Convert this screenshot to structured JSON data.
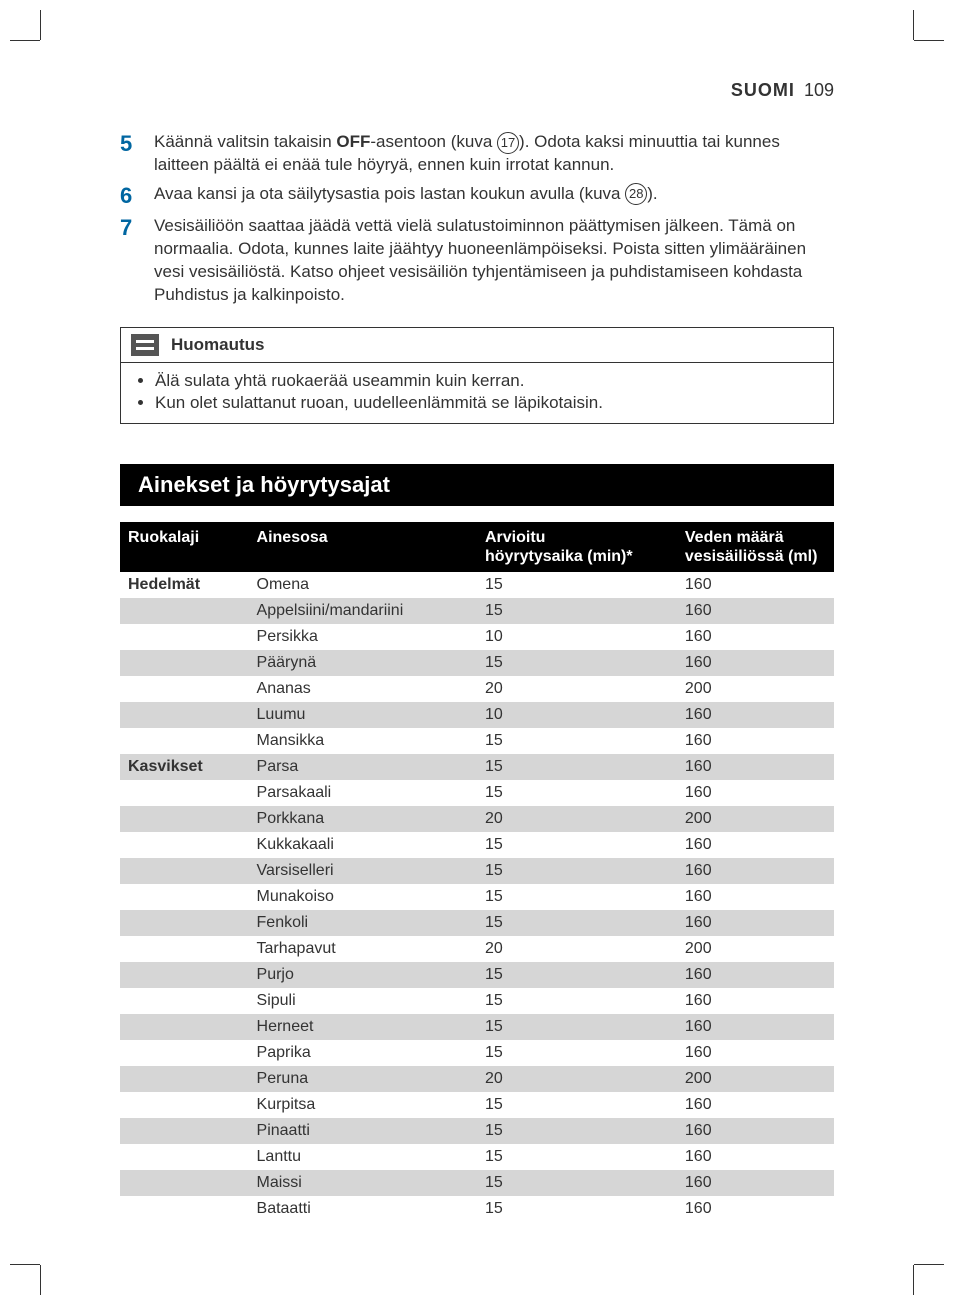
{
  "header": {
    "language": "SUOMI",
    "page_number": "109"
  },
  "steps": [
    {
      "num": "5",
      "text_parts": [
        "Käännä valitsin takaisin ",
        {
          "bold": "OFF"
        },
        "-asentoon (kuva ",
        {
          "fig": "17"
        },
        "). Odota kaksi minuuttia tai kunnes laitteen päältä ei enää tule höyryä, ennen kuin irrotat kannun."
      ]
    },
    {
      "num": "6",
      "text_parts": [
        "Avaa kansi ja ota säilytysastia pois lastan koukun avulla (kuva ",
        {
          "fig": "28"
        },
        ")."
      ]
    },
    {
      "num": "7",
      "text_parts": [
        "Vesisäiliöön saattaa jäädä vettä vielä sulatustoiminnon päättymisen jälkeen. Tämä on normaalia. Odota, kunnes laite jäähtyy huoneenlämpöiseksi. Poista sitten ylimääräinen vesi vesisäiliöstä. Katso ohjeet vesisäiliön tyhjentämiseen ja puhdistamiseen kohdasta Puhdistus ja kalkinpoisto."
      ]
    }
  ],
  "note": {
    "title": "Huomautus",
    "items": [
      "Älä sulata yhtä ruokaerää useammin kuin kerran.",
      "Kun olet sulattanut ruoan, uudelleenlämmitä se läpikotaisin."
    ]
  },
  "section_title": "Ainekset ja höyrytysajat",
  "table": {
    "columns": [
      "Ruokalaji",
      "Ainesosa",
      "Arvioitu höyrytysaika (min)*",
      "Veden määrä vesisäiliössä (ml)"
    ],
    "col_header_lines": {
      "col3": [
        "Arvioitu",
        "höyrytysaika (min)*"
      ],
      "col4": [
        "Veden määrä",
        "vesisäiliössä (ml)"
      ]
    },
    "rows": [
      {
        "category": "Hedelmät",
        "ingredient": "Omena",
        "time": "15",
        "water": "160",
        "shade": false
      },
      {
        "category": "",
        "ingredient": "Appelsiini/mandariini",
        "time": "15",
        "water": "160",
        "shade": true
      },
      {
        "category": "",
        "ingredient": "Persikka",
        "time": "10",
        "water": "160",
        "shade": false
      },
      {
        "category": "",
        "ingredient": "Päärynä",
        "time": "15",
        "water": "160",
        "shade": true
      },
      {
        "category": "",
        "ingredient": "Ananas",
        "time": "20",
        "water": "200",
        "shade": false
      },
      {
        "category": "",
        "ingredient": "Luumu",
        "time": "10",
        "water": "160",
        "shade": true
      },
      {
        "category": "",
        "ingredient": "Mansikka",
        "time": "15",
        "water": "160",
        "shade": false
      },
      {
        "category": "Kasvikset",
        "ingredient": "Parsa",
        "time": "15",
        "water": "160",
        "shade": true
      },
      {
        "category": "",
        "ingredient": "Parsakaali",
        "time": "15",
        "water": "160",
        "shade": false
      },
      {
        "category": "",
        "ingredient": "Porkkana",
        "time": "20",
        "water": "200",
        "shade": true
      },
      {
        "category": "",
        "ingredient": "Kukkakaali",
        "time": "15",
        "water": "160",
        "shade": false
      },
      {
        "category": "",
        "ingredient": "Varsiselleri",
        "time": "15",
        "water": "160",
        "shade": true
      },
      {
        "category": "",
        "ingredient": "Munakoiso",
        "time": "15",
        "water": "160",
        "shade": false
      },
      {
        "category": "",
        "ingredient": "Fenkoli",
        "time": "15",
        "water": "160",
        "shade": true
      },
      {
        "category": "",
        "ingredient": "Tarhapavut",
        "time": "20",
        "water": "200",
        "shade": false
      },
      {
        "category": "",
        "ingredient": "Purjo",
        "time": "15",
        "water": "160",
        "shade": true
      },
      {
        "category": "",
        "ingredient": "Sipuli",
        "time": "15",
        "water": "160",
        "shade": false
      },
      {
        "category": "",
        "ingredient": "Herneet",
        "time": "15",
        "water": "160",
        "shade": true
      },
      {
        "category": "",
        "ingredient": "Paprika",
        "time": "15",
        "water": "160",
        "shade": false
      },
      {
        "category": "",
        "ingredient": "Peruna",
        "time": "20",
        "water": "200",
        "shade": true
      },
      {
        "category": "",
        "ingredient": "Kurpitsa",
        "time": "15",
        "water": "160",
        "shade": false
      },
      {
        "category": "",
        "ingredient": "Pinaatti",
        "time": "15",
        "water": "160",
        "shade": true
      },
      {
        "category": "",
        "ingredient": "Lanttu",
        "time": "15",
        "water": "160",
        "shade": false
      },
      {
        "category": "",
        "ingredient": "Maissi",
        "time": "15",
        "water": "160",
        "shade": true
      },
      {
        "category": "",
        "ingredient": "Bataatti",
        "time": "15",
        "water": "160",
        "shade": false
      }
    ]
  },
  "colors": {
    "accent": "#0066a1",
    "black": "#000000",
    "shade": "#d6d6d6",
    "text": "#333333",
    "background": "#ffffff"
  },
  "typography": {
    "body_fontsize_pt": 12,
    "stepnum_fontsize_pt": 16,
    "section_title_fontsize_pt": 16
  }
}
